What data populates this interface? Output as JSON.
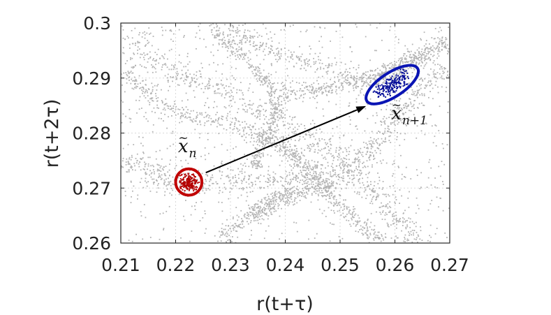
{
  "chart_data": {
    "type": "scatter",
    "xlabel": "r(t+τ)",
    "ylabel": "r(t+2τ)",
    "xlim": [
      0.21,
      0.27
    ],
    "ylim": [
      0.26,
      0.3
    ],
    "xticks": [
      0.21,
      0.22,
      0.23,
      0.24,
      0.25,
      0.26,
      0.27
    ],
    "yticks": [
      0.26,
      0.27,
      0.28,
      0.29,
      0.3
    ],
    "xtick_labels": [
      "0.21",
      "0.22",
      "0.23",
      "0.24",
      "0.25",
      "0.26",
      "0.27"
    ],
    "ytick_labels": [
      "0.26",
      "0.27",
      "0.28",
      "0.29",
      "0.3"
    ],
    "grid": true,
    "colors": {
      "background_points": "#b4b4b4",
      "start_cluster": "#c00000",
      "end_cluster": "#0a14b4",
      "arrow": "#000000",
      "axes": "#262626",
      "grid": "#d9d9d9"
    },
    "background_series": {
      "description_color": "gray",
      "curves": [
        {
          "points": [
            [
              0.2105,
              0.2755
            ],
            [
              0.214,
              0.2735
            ],
            [
              0.218,
              0.2717
            ],
            [
              0.2225,
              0.271
            ],
            [
              0.227,
              0.2712
            ],
            [
              0.232,
              0.2716
            ],
            [
              0.237,
              0.2715
            ],
            [
              0.2415,
              0.2712
            ],
            [
              0.2455,
              0.2715
            ],
            [
              0.2505,
              0.273
            ],
            [
              0.2545,
              0.276
            ],
            [
              0.2585,
              0.2805
            ],
            [
              0.2625,
              0.2855
            ],
            [
              0.2665,
              0.2895
            ],
            [
              0.2695,
              0.2915
            ]
          ],
          "width": 0.0011,
          "count": 750
        },
        {
          "points": [
            [
              0.211,
              0.298
            ],
            [
              0.216,
              0.2935
            ],
            [
              0.221,
              0.2905
            ],
            [
              0.226,
              0.2885
            ],
            [
              0.2305,
              0.2865
            ],
            [
              0.2345,
              0.2845
            ],
            [
              0.2385,
              0.2825
            ],
            [
              0.2425,
              0.2805
            ],
            [
              0.2465,
              0.278
            ],
            [
              0.2505,
              0.2745
            ],
            [
              0.2555,
              0.2695
            ],
            [
              0.261,
              0.2635
            ],
            [
              0.2655,
              0.2595
            ]
          ],
          "width": 0.0012,
          "count": 650
        },
        {
          "points": [
            [
              0.211,
              0.2915
            ],
            [
              0.2145,
              0.2875
            ],
            [
              0.2185,
              0.2845
            ],
            [
              0.2225,
              0.283
            ],
            [
              0.227,
              0.2825
            ],
            [
              0.2315,
              0.2815
            ],
            [
              0.2355,
              0.2795
            ],
            [
              0.2395,
              0.2775
            ],
            [
              0.2435,
              0.275
            ],
            [
              0.247,
              0.2715
            ]
          ],
          "width": 0.0008,
          "count": 380
        },
        {
          "points": [
            [
              0.2265,
              0.2998
            ],
            [
              0.2285,
              0.2975
            ],
            [
              0.2315,
              0.2945
            ],
            [
              0.2345,
              0.2918
            ],
            [
              0.237,
              0.289
            ],
            [
              0.2385,
              0.2862
            ],
            [
              0.2385,
              0.2835
            ],
            [
              0.2375,
              0.2815
            ],
            [
              0.2365,
              0.2795
            ],
            [
              0.2355,
              0.2775
            ],
            [
              0.2348,
              0.2755
            ],
            [
              0.2345,
              0.2735
            ]
          ],
          "width": 0.0007,
          "count": 420
        },
        {
          "points": [
            [
              0.2305,
              0.2998
            ],
            [
              0.2335,
              0.2968
            ],
            [
              0.2375,
              0.2948
            ],
            [
              0.2425,
              0.2935
            ],
            [
              0.2475,
              0.292
            ],
            [
              0.2525,
              0.2905
            ],
            [
              0.258,
              0.2898
            ],
            [
              0.2625,
              0.2915
            ],
            [
              0.2665,
              0.2945
            ],
            [
              0.2695,
              0.2975
            ]
          ],
          "width": 0.0008,
          "count": 380
        },
        {
          "points": [
            [
              0.2395,
              0.2873
            ],
            [
              0.2435,
              0.2878
            ],
            [
              0.2475,
              0.2883
            ],
            [
              0.2515,
              0.2888
            ],
            [
              0.2555,
              0.2898
            ],
            [
              0.2595,
              0.2915
            ],
            [
              0.2635,
              0.2935
            ],
            [
              0.2675,
              0.2955
            ],
            [
              0.2695,
              0.2962
            ]
          ],
          "width": 0.0008,
          "count": 480
        },
        {
          "points": [
            [
              0.2365,
              0.2795
            ],
            [
              0.2395,
              0.2775
            ],
            [
              0.2425,
              0.2745
            ],
            [
              0.2455,
              0.2715
            ],
            [
              0.2485,
              0.2685
            ],
            [
              0.2515,
              0.2655
            ],
            [
              0.2545,
              0.2625
            ],
            [
              0.2575,
              0.2602
            ]
          ],
          "width": 0.0008,
          "count": 340
        },
        {
          "points": [
            [
              0.2275,
              0.2602
            ],
            [
              0.2305,
              0.2628
            ],
            [
              0.2335,
              0.2652
            ],
            [
              0.2365,
              0.2672
            ],
            [
              0.2395,
              0.2688
            ],
            [
              0.2425,
              0.2698
            ]
          ],
          "width": 0.0006,
          "count": 220
        },
        {
          "points": [
            [
              0.2345,
              0.2645
            ],
            [
              0.2375,
              0.2665
            ],
            [
              0.241,
              0.2682
            ],
            [
              0.245,
              0.2695
            ],
            [
              0.249,
              0.2708
            ]
          ],
          "width": 0.0006,
          "count": 180
        }
      ],
      "uniform_count": 900
    },
    "clusters": [
      {
        "name": "",
        "center": [
          0.2224,
          0.2711
        ],
        "radius_x": 0.0024,
        "radius_y": 0.0024,
        "count": 170,
        "point_color": "#b40000"
      },
      {
        "name": "",
        "center": [
          0.2595,
          0.2888
        ],
        "radius_x": 0.0055,
        "radius_y": 0.0022,
        "angle_deg": 33,
        "count": 190,
        "point_color": "#08109a"
      }
    ],
    "arrow": {
      "from": [
        0.2255,
        0.2728
      ],
      "to": [
        0.2545,
        0.2848
      ]
    },
    "annotations": [
      {
        "label": "x",
        "subscript": "n",
        "x": 0.2223,
        "y": 0.2765
      },
      {
        "label": "x",
        "subscript": "n+1",
        "x": 0.2612,
        "y": 0.2825
      }
    ]
  }
}
